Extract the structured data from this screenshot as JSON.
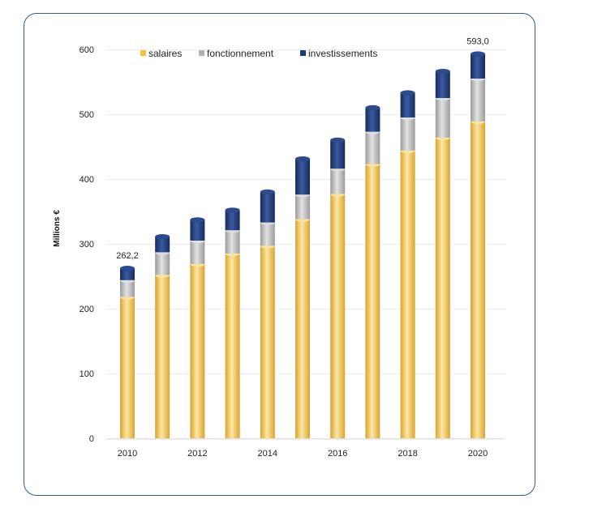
{
  "chart_data": {
    "type": "bar",
    "stacked": true,
    "ylabel": "Millions €",
    "ylim": [
      0,
      600
    ],
    "yticks": [
      "0",
      "100",
      "200",
      "300",
      "400",
      "500",
      "600"
    ],
    "x": [
      2010,
      2011,
      2012,
      2013,
      2014,
      2015,
      2016,
      2017,
      2018,
      2019,
      2020
    ],
    "xtick_labels": [
      "2010",
      "2012",
      "2014",
      "2016",
      "2018",
      "2020"
    ],
    "legend_position": "top",
    "grid": true,
    "series": [
      {
        "name": "salaires",
        "color": "#f5c242",
        "values": [
          218,
          252,
          269,
          285,
          297,
          338,
          377,
          423,
          444,
          464,
          489
        ]
      },
      {
        "name": "fonctionnement",
        "color": "#b3b3b3",
        "values": [
          26,
          35,
          36,
          36,
          36,
          38,
          39,
          50,
          51,
          61,
          66
        ]
      },
      {
        "name": "investissements",
        "color": "#1f3a78",
        "values": [
          18.2,
          24,
          32,
          31,
          47,
          55,
          44,
          37,
          38,
          41,
          38
        ]
      }
    ],
    "data_labels": [
      {
        "x": 2010,
        "text": "262,2"
      },
      {
        "x": 2020,
        "text": "593,0"
      }
    ]
  }
}
